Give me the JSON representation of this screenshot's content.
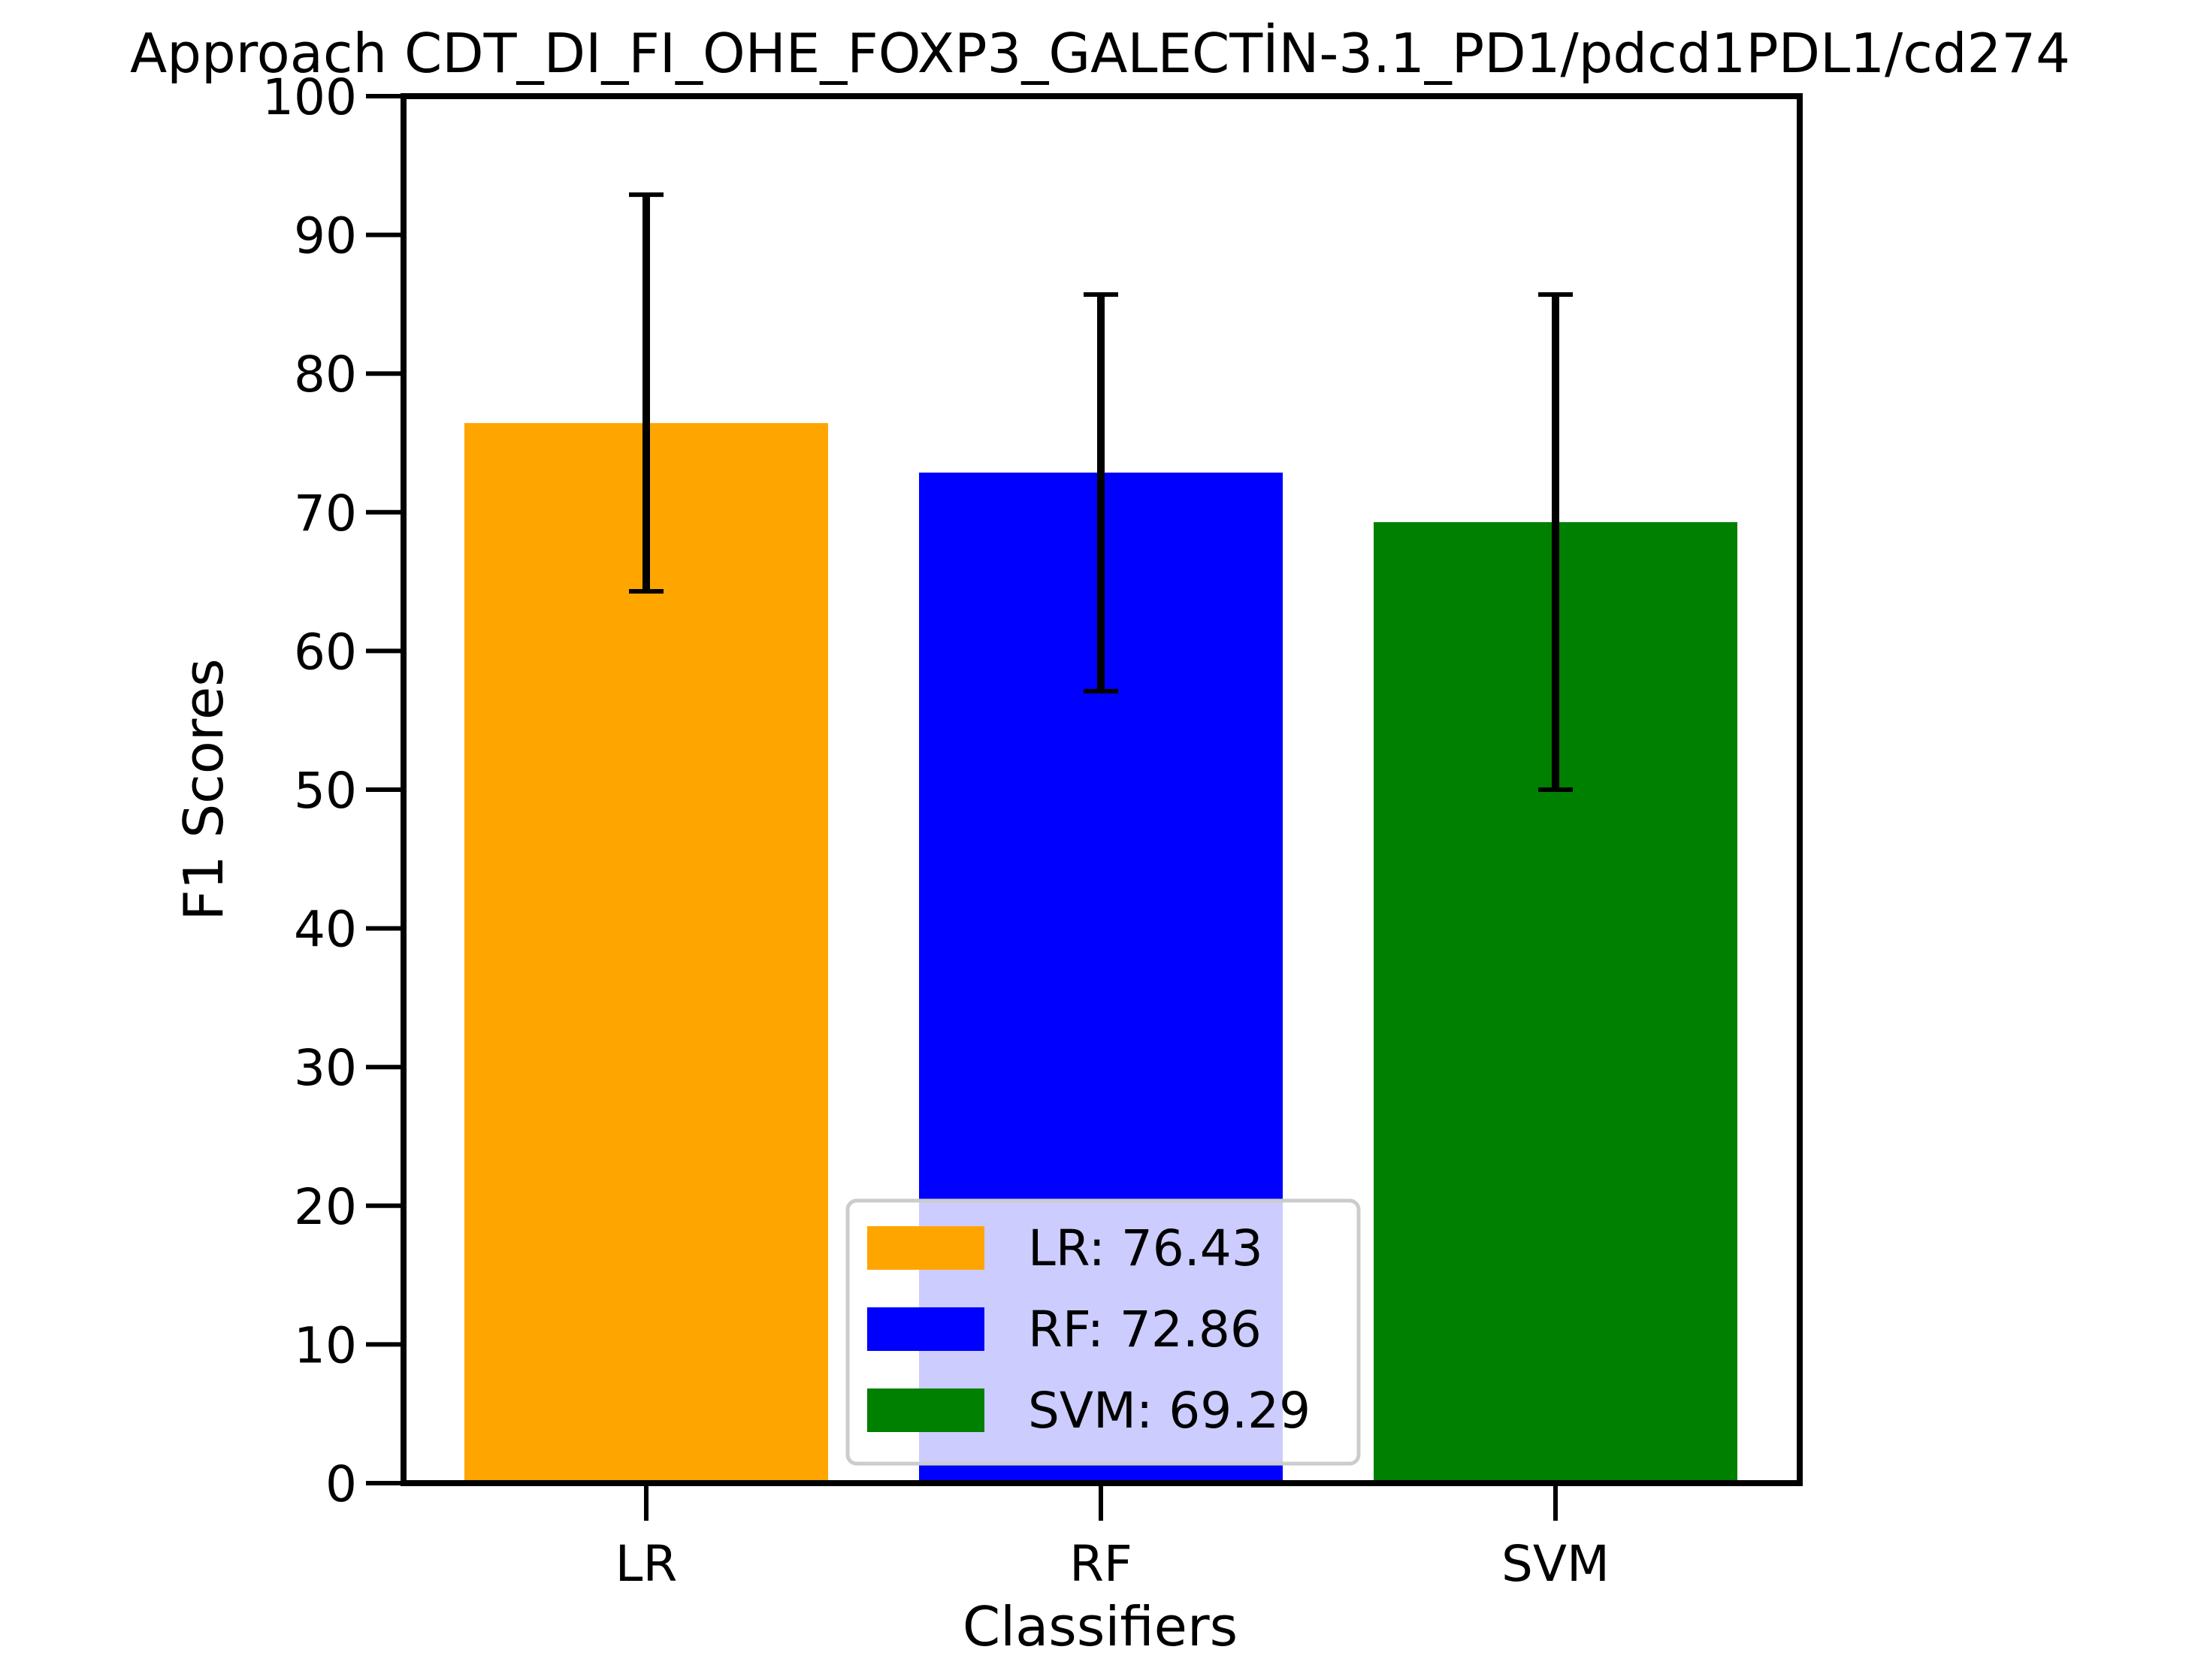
{
  "chart_data": {
    "type": "bar",
    "title": "Approach CDT_DI_FI_OHE_FOXP3_GALECTİN-3.1_PD1/pdcd1PDL1/cd274",
    "xlabel": "Classifiers",
    "ylabel": "F1 Scores",
    "ylim": [
      0,
      100
    ],
    "yticks": [
      "0",
      "10",
      "20",
      "30",
      "40",
      "50",
      "60",
      "70",
      "80",
      "90",
      "100"
    ],
    "categories": [
      "LR",
      "RF",
      "SVM"
    ],
    "values": [
      76.43,
      72.86,
      69.29
    ],
    "error_low": [
      64.3,
      57.1,
      50.0
    ],
    "error_high": [
      92.9,
      85.7,
      85.7
    ],
    "colors": [
      "#ffa500",
      "#0000ff",
      "#008000"
    ],
    "legend": {
      "placement": "lower-center",
      "entries": [
        {
          "label": "LR: 76.43",
          "color": "#ffa500"
        },
        {
          "label": "RF: 72.86",
          "color": "#0000ff"
        },
        {
          "label": "SVM: 69.29",
          "color": "#008000"
        }
      ]
    },
    "grid": false
  }
}
